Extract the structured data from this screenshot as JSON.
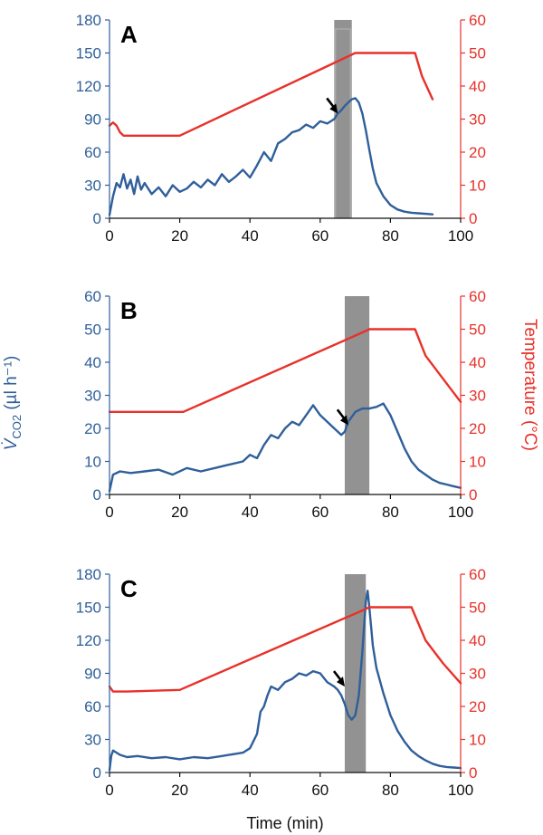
{
  "colors": {
    "left_axis": "#2f5f9a",
    "right_axis": "#e8312a",
    "co2_line": "#2f5f9a",
    "temp_line": "#e8312a",
    "shade": "#8c8c8c",
    "arrow": "#000000"
  },
  "labels": {
    "ylabel_left_symbol": "V̇",
    "ylabel_left_sub": "CO2",
    "ylabel_left_unit": " (µl h⁻¹)",
    "ylabel_right": "Temperature (°C)",
    "xlabel": "Time (min)"
  },
  "chart_data": [
    {
      "type": "line",
      "panel": "A",
      "xlim": [
        0,
        100
      ],
      "x_ticks": [
        "0",
        "20",
        "40",
        "60",
        "80",
        "100"
      ],
      "ylim_left": [
        0,
        180
      ],
      "y_ticks_left": [
        "0",
        "30",
        "60",
        "90",
        "120",
        "150",
        "180"
      ],
      "ylim_right": [
        0,
        60
      ],
      "y_ticks_right": [
        "0",
        "10",
        "20",
        "30",
        "40",
        "50",
        "60"
      ],
      "shaded_region": [
        64,
        69
      ],
      "arrow_at": [
        65,
        95
      ],
      "series": [
        {
          "axis": "left",
          "x": [
            0,
            1,
            2,
            3,
            4,
            5,
            6,
            7,
            8,
            9,
            10,
            12,
            14,
            16,
            18,
            20,
            22,
            24,
            26,
            28,
            30,
            32,
            34,
            36,
            38,
            40,
            42,
            44,
            46,
            48,
            50,
            52,
            54,
            56,
            58,
            60,
            62,
            64,
            65,
            66,
            67,
            68,
            69,
            70,
            71,
            72,
            73,
            74,
            75,
            76,
            78,
            80,
            82,
            84,
            86,
            88,
            90,
            92
          ],
          "y": [
            3,
            20,
            32,
            28,
            40,
            27,
            35,
            22,
            38,
            26,
            32,
            22,
            28,
            20,
            30,
            24,
            27,
            33,
            28,
            35,
            30,
            40,
            33,
            38,
            44,
            37,
            48,
            60,
            52,
            68,
            72,
            78,
            80,
            85,
            82,
            88,
            86,
            90,
            95,
            98,
            102,
            105,
            108,
            109,
            105,
            95,
            80,
            62,
            45,
            32,
            20,
            12,
            8,
            6,
            5,
            4.5,
            4,
            3.5
          ]
        },
        {
          "axis": "right",
          "x": [
            0,
            1,
            2,
            3,
            4,
            20,
            70,
            87,
            89,
            92
          ],
          "y": [
            28,
            29,
            28,
            26,
            25,
            25,
            50,
            50,
            43,
            36
          ]
        }
      ]
    },
    {
      "type": "line",
      "panel": "B",
      "xlim": [
        0,
        100
      ],
      "x_ticks": [
        "0",
        "20",
        "40",
        "60",
        "80",
        "100"
      ],
      "ylim_left": [
        0,
        60
      ],
      "y_ticks_left": [
        "0",
        "10",
        "20",
        "30",
        "40",
        "50",
        "60"
      ],
      "ylim_right": [
        0,
        60
      ],
      "y_ticks_right": [
        "0",
        "10",
        "20",
        "30",
        "40",
        "50",
        "60"
      ],
      "shaded_region": [
        67,
        74
      ],
      "arrow_at": [
        68,
        21
      ],
      "series": [
        {
          "axis": "left",
          "x": [
            0,
            1,
            3,
            6,
            10,
            14,
            18,
            22,
            26,
            30,
            34,
            38,
            40,
            42,
            44,
            46,
            48,
            50,
            52,
            54,
            56,
            58,
            60,
            62,
            64,
            66,
            67,
            68,
            70,
            72,
            74,
            76,
            77,
            78,
            80,
            82,
            84,
            86,
            88,
            90,
            92,
            94,
            96,
            98,
            100
          ],
          "y": [
            1,
            6,
            7,
            6.5,
            7,
            7.5,
            6,
            8,
            7,
            8,
            9,
            10,
            12,
            11,
            15,
            18,
            17,
            20,
            22,
            21,
            24,
            27,
            24,
            22,
            20,
            18,
            19,
            22,
            25,
            26,
            26,
            26.5,
            27,
            27.5,
            24,
            19,
            14,
            10,
            7.5,
            6,
            4.5,
            3.5,
            3,
            2.5,
            2
          ]
        },
        {
          "axis": "right",
          "x": [
            0,
            21,
            72,
            74,
            87,
            90,
            95,
            100
          ],
          "y": [
            25,
            25,
            49,
            50,
            50,
            42,
            35,
            28
          ]
        }
      ]
    },
    {
      "type": "line",
      "panel": "C",
      "xlim": [
        0,
        100
      ],
      "x_ticks": [
        "0",
        "20",
        "40",
        "60",
        "80",
        "100"
      ],
      "ylim_left": [
        0,
        180
      ],
      "y_ticks_left": [
        "0",
        "30",
        "60",
        "90",
        "120",
        "150",
        "180"
      ],
      "ylim_right": [
        0,
        60
      ],
      "y_ticks_right": [
        "0",
        "10",
        "20",
        "30",
        "40",
        "50",
        "60"
      ],
      "shaded_region": [
        67,
        73
      ],
      "arrow_at": [
        67,
        78
      ],
      "series": [
        {
          "axis": "left",
          "x": [
            0,
            0.5,
            1,
            3,
            5,
            8,
            12,
            16,
            20,
            24,
            28,
            32,
            36,
            38,
            40,
            42,
            43,
            44,
            45,
            46,
            48,
            50,
            52,
            54,
            56,
            58,
            60,
            62,
            64,
            65,
            66,
            67,
            68,
            69,
            70,
            71,
            72,
            73,
            73.5,
            74,
            75,
            76,
            78,
            80,
            82,
            84,
            86,
            88,
            90,
            92,
            94,
            96,
            98,
            100
          ],
          "y": [
            2,
            15,
            20,
            16,
            14,
            15,
            13,
            14,
            12,
            14,
            13,
            15,
            17,
            18,
            22,
            35,
            55,
            60,
            70,
            78,
            75,
            82,
            85,
            90,
            88,
            92,
            90,
            82,
            78,
            75,
            70,
            62,
            52,
            48,
            52,
            70,
            110,
            155,
            165,
            150,
            115,
            95,
            72,
            52,
            38,
            28,
            20,
            15,
            11,
            8,
            6,
            5,
            4.5,
            4
          ]
        },
        {
          "axis": "right",
          "x": [
            0,
            1,
            5,
            20,
            72,
            74,
            86,
            90,
            95,
            100
          ],
          "y": [
            26,
            24.5,
            24.5,
            25,
            49,
            50,
            50,
            40,
            33,
            27
          ]
        }
      ]
    }
  ]
}
